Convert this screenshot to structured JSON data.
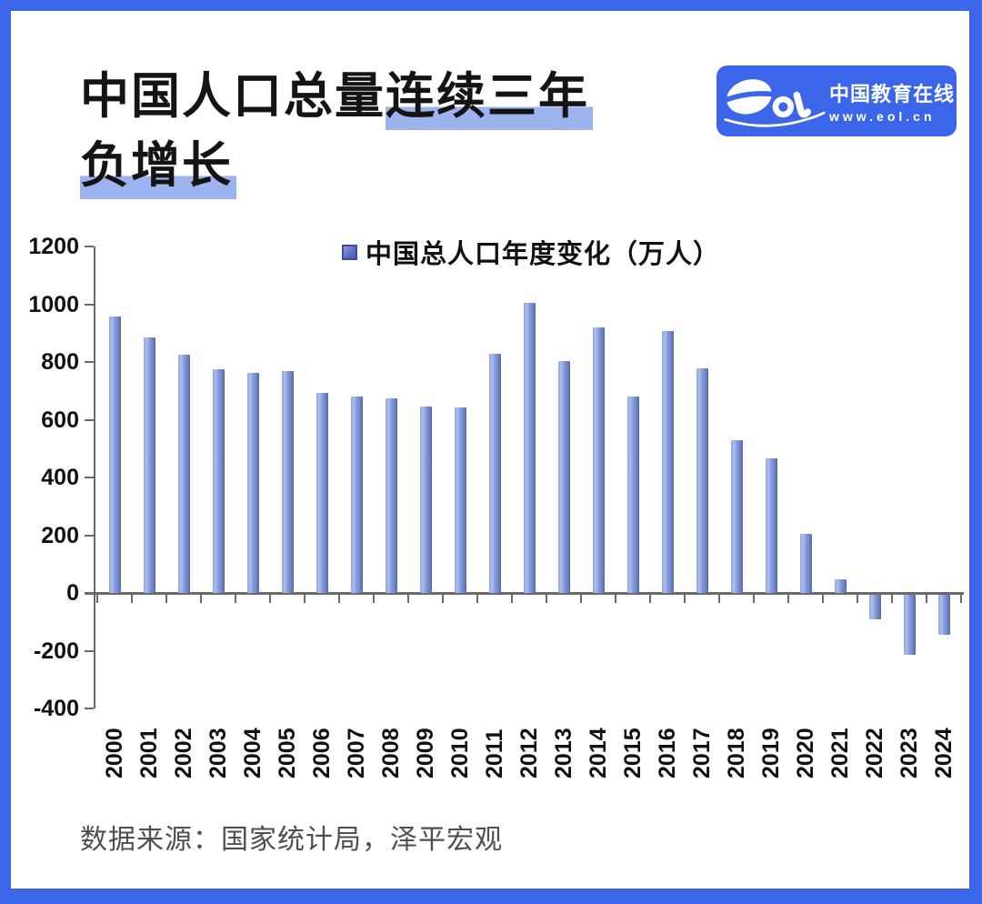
{
  "header": {
    "title_plain": "中国人口总量",
    "title_highlight1": "连续三年",
    "title_highlight2": "负增长",
    "highlight_color": "#9db3ee"
  },
  "logo": {
    "mark": "eol",
    "name": "中国教育在线",
    "url": "www.eol.cn",
    "background_color": "#3b66ea"
  },
  "chart_data": {
    "type": "bar",
    "legend": "中国总人口年度变化（万人）",
    "legend_position": "top-center",
    "categories": [
      "2000",
      "2001",
      "2002",
      "2003",
      "2004",
      "2005",
      "2006",
      "2007",
      "2008",
      "2009",
      "2010",
      "2011",
      "2012",
      "2013",
      "2014",
      "2015",
      "2016",
      "2017",
      "2018",
      "2019",
      "2020",
      "2021",
      "2022",
      "2023",
      "2024"
    ],
    "values": [
      957,
      884,
      826,
      774,
      761,
      768,
      692,
      681,
      673,
      647,
      641,
      827,
      1006,
      804,
      921,
      680,
      906,
      779,
      530,
      467,
      204,
      48,
      -85,
      -208,
      -139
    ],
    "xlabel": "",
    "ylabel": "",
    "ylim": [
      -400,
      1200
    ],
    "yticks": [
      1200,
      1000,
      800,
      600,
      400,
      200,
      0,
      -200,
      -400
    ],
    "grid": false,
    "bar_color": "#7e95d6",
    "axis_color": "#6a6a6a"
  },
  "footer": {
    "source": "数据来源：国家统计局，泽平宏观"
  }
}
